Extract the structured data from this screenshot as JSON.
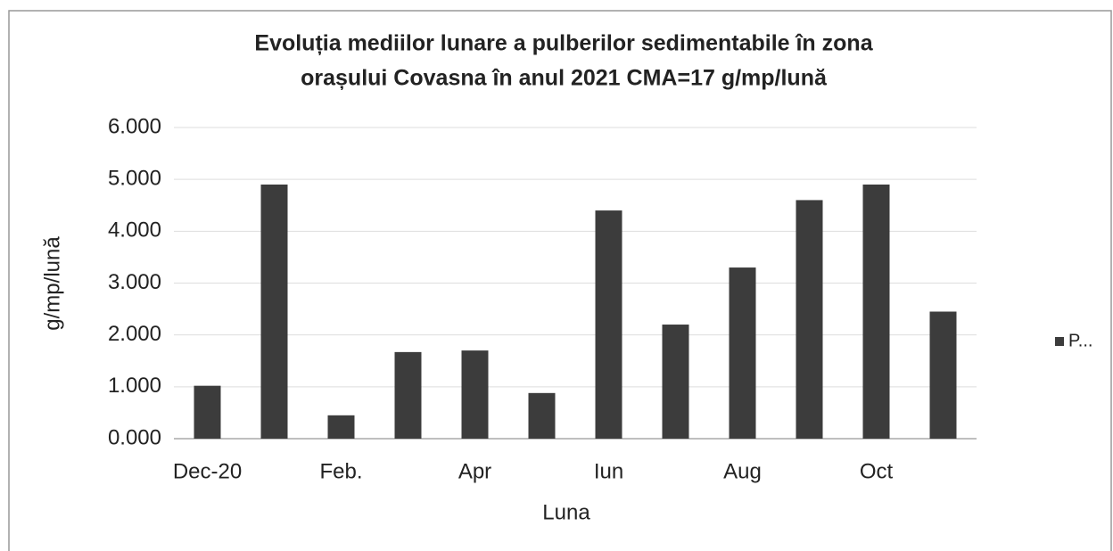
{
  "chart_data": {
    "type": "bar",
    "title": [
      "Evoluția mediilor lunare a pulberilor sedimentabile în zona",
      "orașului Covasna în anul 2021    CMA=17 g/mp/lună"
    ],
    "x_label": "Luna",
    "y_label": "g/mp/lună",
    "categories": [
      "Dec-20",
      null,
      "Feb.",
      null,
      "Apr",
      null,
      "Iun",
      null,
      "Aug",
      null,
      "Oct",
      null
    ],
    "series": [
      {
        "name": "P...",
        "color": "#3c3c3c",
        "values": [
          1.02,
          4.9,
          0.45,
          1.67,
          1.7,
          0.88,
          4.4,
          2.2,
          3.3,
          4.6,
          4.9,
          2.45
        ]
      }
    ],
    "ylim": [
      0,
      6
    ],
    "yticks": [
      {
        "value": 0,
        "label": "0.000"
      },
      {
        "value": 1,
        "label": "1.000"
      },
      {
        "value": 2,
        "label": "2.000"
      },
      {
        "value": 3,
        "label": "3.000"
      },
      {
        "value": 4,
        "label": "4.000"
      },
      {
        "value": 5,
        "label": "5.000"
      },
      {
        "value": 6,
        "label": "6.000"
      }
    ],
    "grid": true,
    "legend": "right"
  }
}
